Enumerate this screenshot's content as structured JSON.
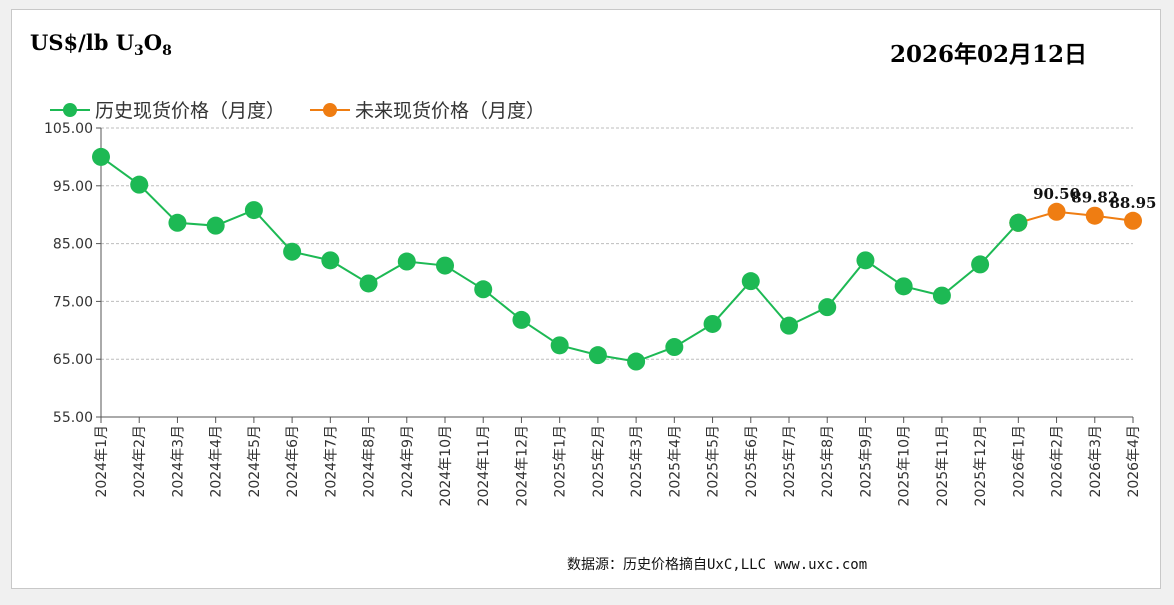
{
  "header": {
    "unit_prefix": "US$/lb U",
    "unit_sub1": "3",
    "unit_mid": "O",
    "unit_sub2": "8",
    "date": "2026年02月12日"
  },
  "footer": {
    "source": "数据源：历史价格摘自UxC,LLC  www.uxc.com"
  },
  "colors": {
    "historical": "#1db954",
    "future": "#ef7d12",
    "grid": "#bdbdbd",
    "axis": "#555555"
  },
  "chart_data": {
    "type": "line",
    "title": "",
    "xlabel": "",
    "ylabel": "US$/lb U3O8",
    "ylim": [
      55,
      105
    ],
    "yticks": [
      "55.00",
      "65.00",
      "75.00",
      "85.00",
      "95.00",
      "105.00"
    ],
    "grid": true,
    "legend_position": "top-left",
    "categories": [
      "2024年1月",
      "2024年2月",
      "2024年3月",
      "2024年4月",
      "2024年5月",
      "2024年6月",
      "2024年7月",
      "2024年8月",
      "2024年9月",
      "2024年10月",
      "2024年11月",
      "2024年12月",
      "2025年1月",
      "2025年2月",
      "2025年3月",
      "2025年4月",
      "2025年5月",
      "2025年6月",
      "2025年7月",
      "2025年8月",
      "2025年9月",
      "2025年10月",
      "2025年11月",
      "2025年12月",
      "2026年1月",
      "2026年2月",
      "2026年3月",
      "2026年4月"
    ],
    "series": [
      {
        "name": "历史现货价格（月度）",
        "values": [
          100.0,
          95.2,
          88.6,
          88.1,
          90.8,
          83.6,
          82.1,
          78.1,
          81.9,
          81.2,
          77.1,
          71.8,
          67.4,
          65.7,
          64.6,
          67.1,
          71.1,
          78.5,
          70.8,
          74.0,
          82.1,
          77.6,
          76.0,
          81.4,
          88.6,
          null,
          null,
          null
        ]
      },
      {
        "name": "未来现货价格（月度）",
        "values": [
          null,
          null,
          null,
          null,
          null,
          null,
          null,
          null,
          null,
          null,
          null,
          null,
          null,
          null,
          null,
          null,
          null,
          null,
          null,
          null,
          null,
          null,
          null,
          null,
          88.6,
          90.5,
          89.82,
          88.95
        ]
      }
    ],
    "data_labels": [
      {
        "index": 25,
        "text": "90.50"
      },
      {
        "index": 26,
        "text": "89.82"
      },
      {
        "index": 27,
        "text": "88.95"
      }
    ]
  }
}
